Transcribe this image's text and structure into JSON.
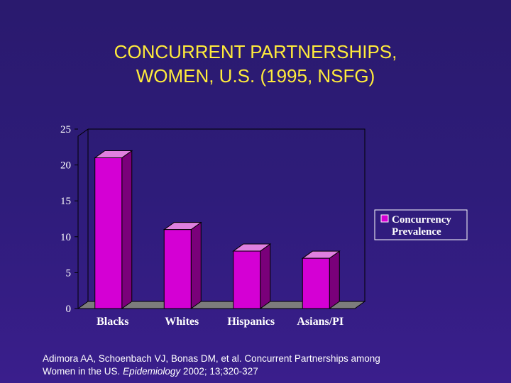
{
  "slide": {
    "title_line1": "CONCURRENT PARTNERSHIPS,",
    "title_line2": "WOMEN,  U.S. (1995, NSFG)",
    "citation_line1": "Adimora  AA, Schoenbach VJ, Bonas DM, et al. Concurrent Partnerships among",
    "citation_line2_prefix": "Women in the US. ",
    "citation_journal": "Epidemiology",
    "citation_line2_suffix": " 2002; 13;320-327"
  },
  "colors": {
    "bar_front": "#d400d4",
    "bar_side": "#7a007a",
    "bar_top": "#e080e0",
    "axis": "#000000",
    "plot_bg": "#2e1c7a"
  },
  "chart_data": {
    "type": "bar",
    "categories": [
      "Blacks",
      "Whites",
      "Hispanics",
      "Asians/PI"
    ],
    "series": [
      {
        "name": "Concurrency Prevalence",
        "values": [
          21,
          11,
          8,
          7
        ]
      }
    ],
    "title": "CONCURRENT PARTNERSHIPS, WOMEN,  U.S. (1995, NSFG)",
    "xlabel": "",
    "ylabel": "",
    "ylim": [
      0,
      25
    ],
    "yticks": [
      0,
      5,
      10,
      15,
      20,
      25
    ],
    "grid": false,
    "legend_position": "right",
    "three_d": true
  }
}
